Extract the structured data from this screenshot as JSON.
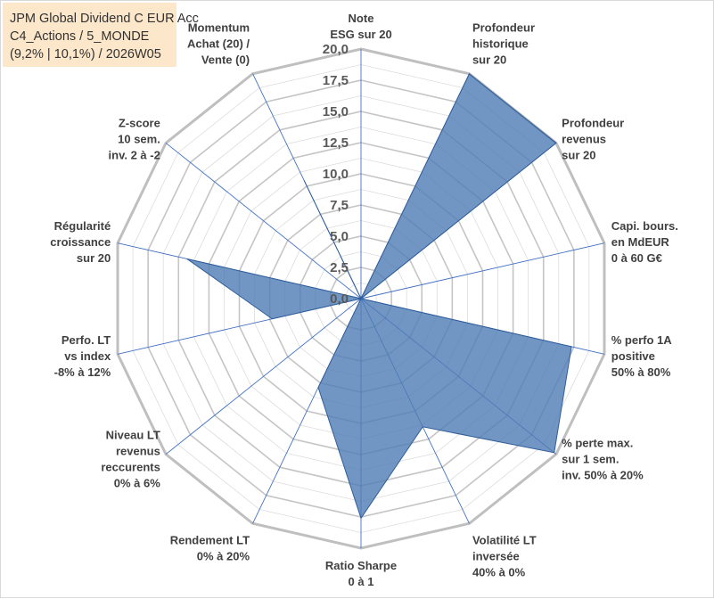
{
  "title": {
    "line1": "JPM Global Dividend C EUR Acc",
    "line2": "C4_Actions / 5_MONDE",
    "line3": "(9,2% | 10,1%) / 2026W05"
  },
  "colors": {
    "fill": "#4f7cb4",
    "stroke": "#2f5d9a",
    "grid": "#bfbfbf",
    "spoke": "#4472c4"
  },
  "chart_data": {
    "type": "radar",
    "rmin": 0,
    "rmax": 20,
    "ticks": [
      "0,0",
      "2,5",
      "5,0",
      "7,5",
      "10,0",
      "12,5",
      "15,0",
      "17,5",
      "20,0"
    ],
    "gridlines": "minor every 1.25, major every 2.5",
    "axes": [
      {
        "label": [
          "Note",
          "ESG sur 20"
        ],
        "value": 0
      },
      {
        "label": [
          "Profondeur",
          "historique",
          "sur 20"
        ],
        "value": 20
      },
      {
        "label": [
          "Profondeur",
          "revenus",
          "sur 20"
        ],
        "value": 20
      },
      {
        "label": [
          "Capi. bours.",
          "en MdEUR",
          "0 à 60 G€"
        ],
        "value": 0
      },
      {
        "label": [
          "% perfo 1A",
          "positive",
          "50% à 80%"
        ],
        "value": 17.3
      },
      {
        "label": [
          "% perte max.",
          "sur 1 sem.",
          "inv. 50% à 20%"
        ],
        "value": 19.8
      },
      {
        "label": [
          "Volatilité LT",
          "inversée",
          "40% à 0%"
        ],
        "value": 11.4
      },
      {
        "label": [
          "Ratio Sharpe",
          "0 à 1"
        ],
        "value": 17.6
      },
      {
        "label": [
          "Rendement LT",
          "0% à 20%"
        ],
        "value": 7.9
      },
      {
        "label": [
          "Niveau LT",
          "revenus",
          "reccurents",
          "0% à 6%"
        ],
        "value": 0
      },
      {
        "label": [
          "Perfo. LT",
          "vs index",
          "-8% à 12%"
        ],
        "value": 7.3
      },
      {
        "label": [
          "Régularité",
          "croissance",
          "sur 20"
        ],
        "value": 14.3
      },
      {
        "label": [
          "Z-score",
          "10 sem.",
          "inv. 2 à -2"
        ],
        "value": 0
      },
      {
        "label": [
          "Momentum",
          "Achat (20) /",
          "Vente (0)"
        ],
        "value": 10.5
      }
    ]
  }
}
